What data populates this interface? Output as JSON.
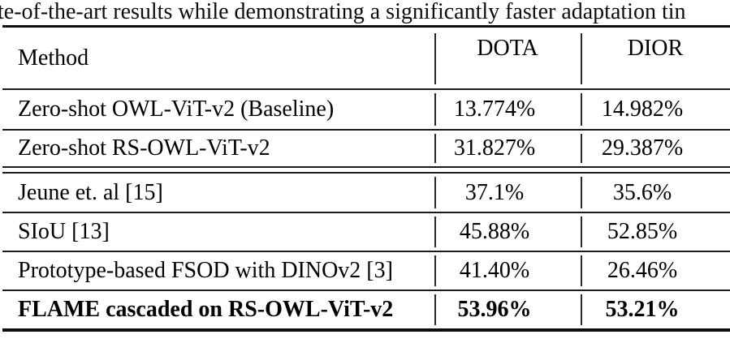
{
  "caption": {
    "fragment": "te-of-the-art results while demonstrating a significantly faster adaptation tin"
  },
  "table": {
    "header": {
      "method": "Method",
      "col1": "DOTA",
      "col2": "DIOR"
    },
    "rows": [
      {
        "method": "Zero-shot OWL-ViT-v2 (Baseline)",
        "dota": "13.774%",
        "dior": "14.982%"
      },
      {
        "method": "Zero-shot RS-OWL-ViT-v2",
        "dota": "31.827%",
        "dior": "29.387%"
      },
      {
        "method": "Jeune et. al [15]",
        "dota": "37.1%",
        "dior": "35.6%"
      },
      {
        "method": "SIoU [13]",
        "dota": "45.88%",
        "dior": "52.85%"
      },
      {
        "method": "Prototype-based FSOD with DINOv2 [3]",
        "dota": "41.40%",
        "dior": "26.46%"
      },
      {
        "method": "FLAME cascaded on RS-OWL-ViT-v2",
        "dota": "53.96%",
        "dior": "53.21%"
      }
    ],
    "colors": {
      "text": "#000000",
      "rule": "#1a1a1a",
      "background": "#ffffff"
    }
  }
}
